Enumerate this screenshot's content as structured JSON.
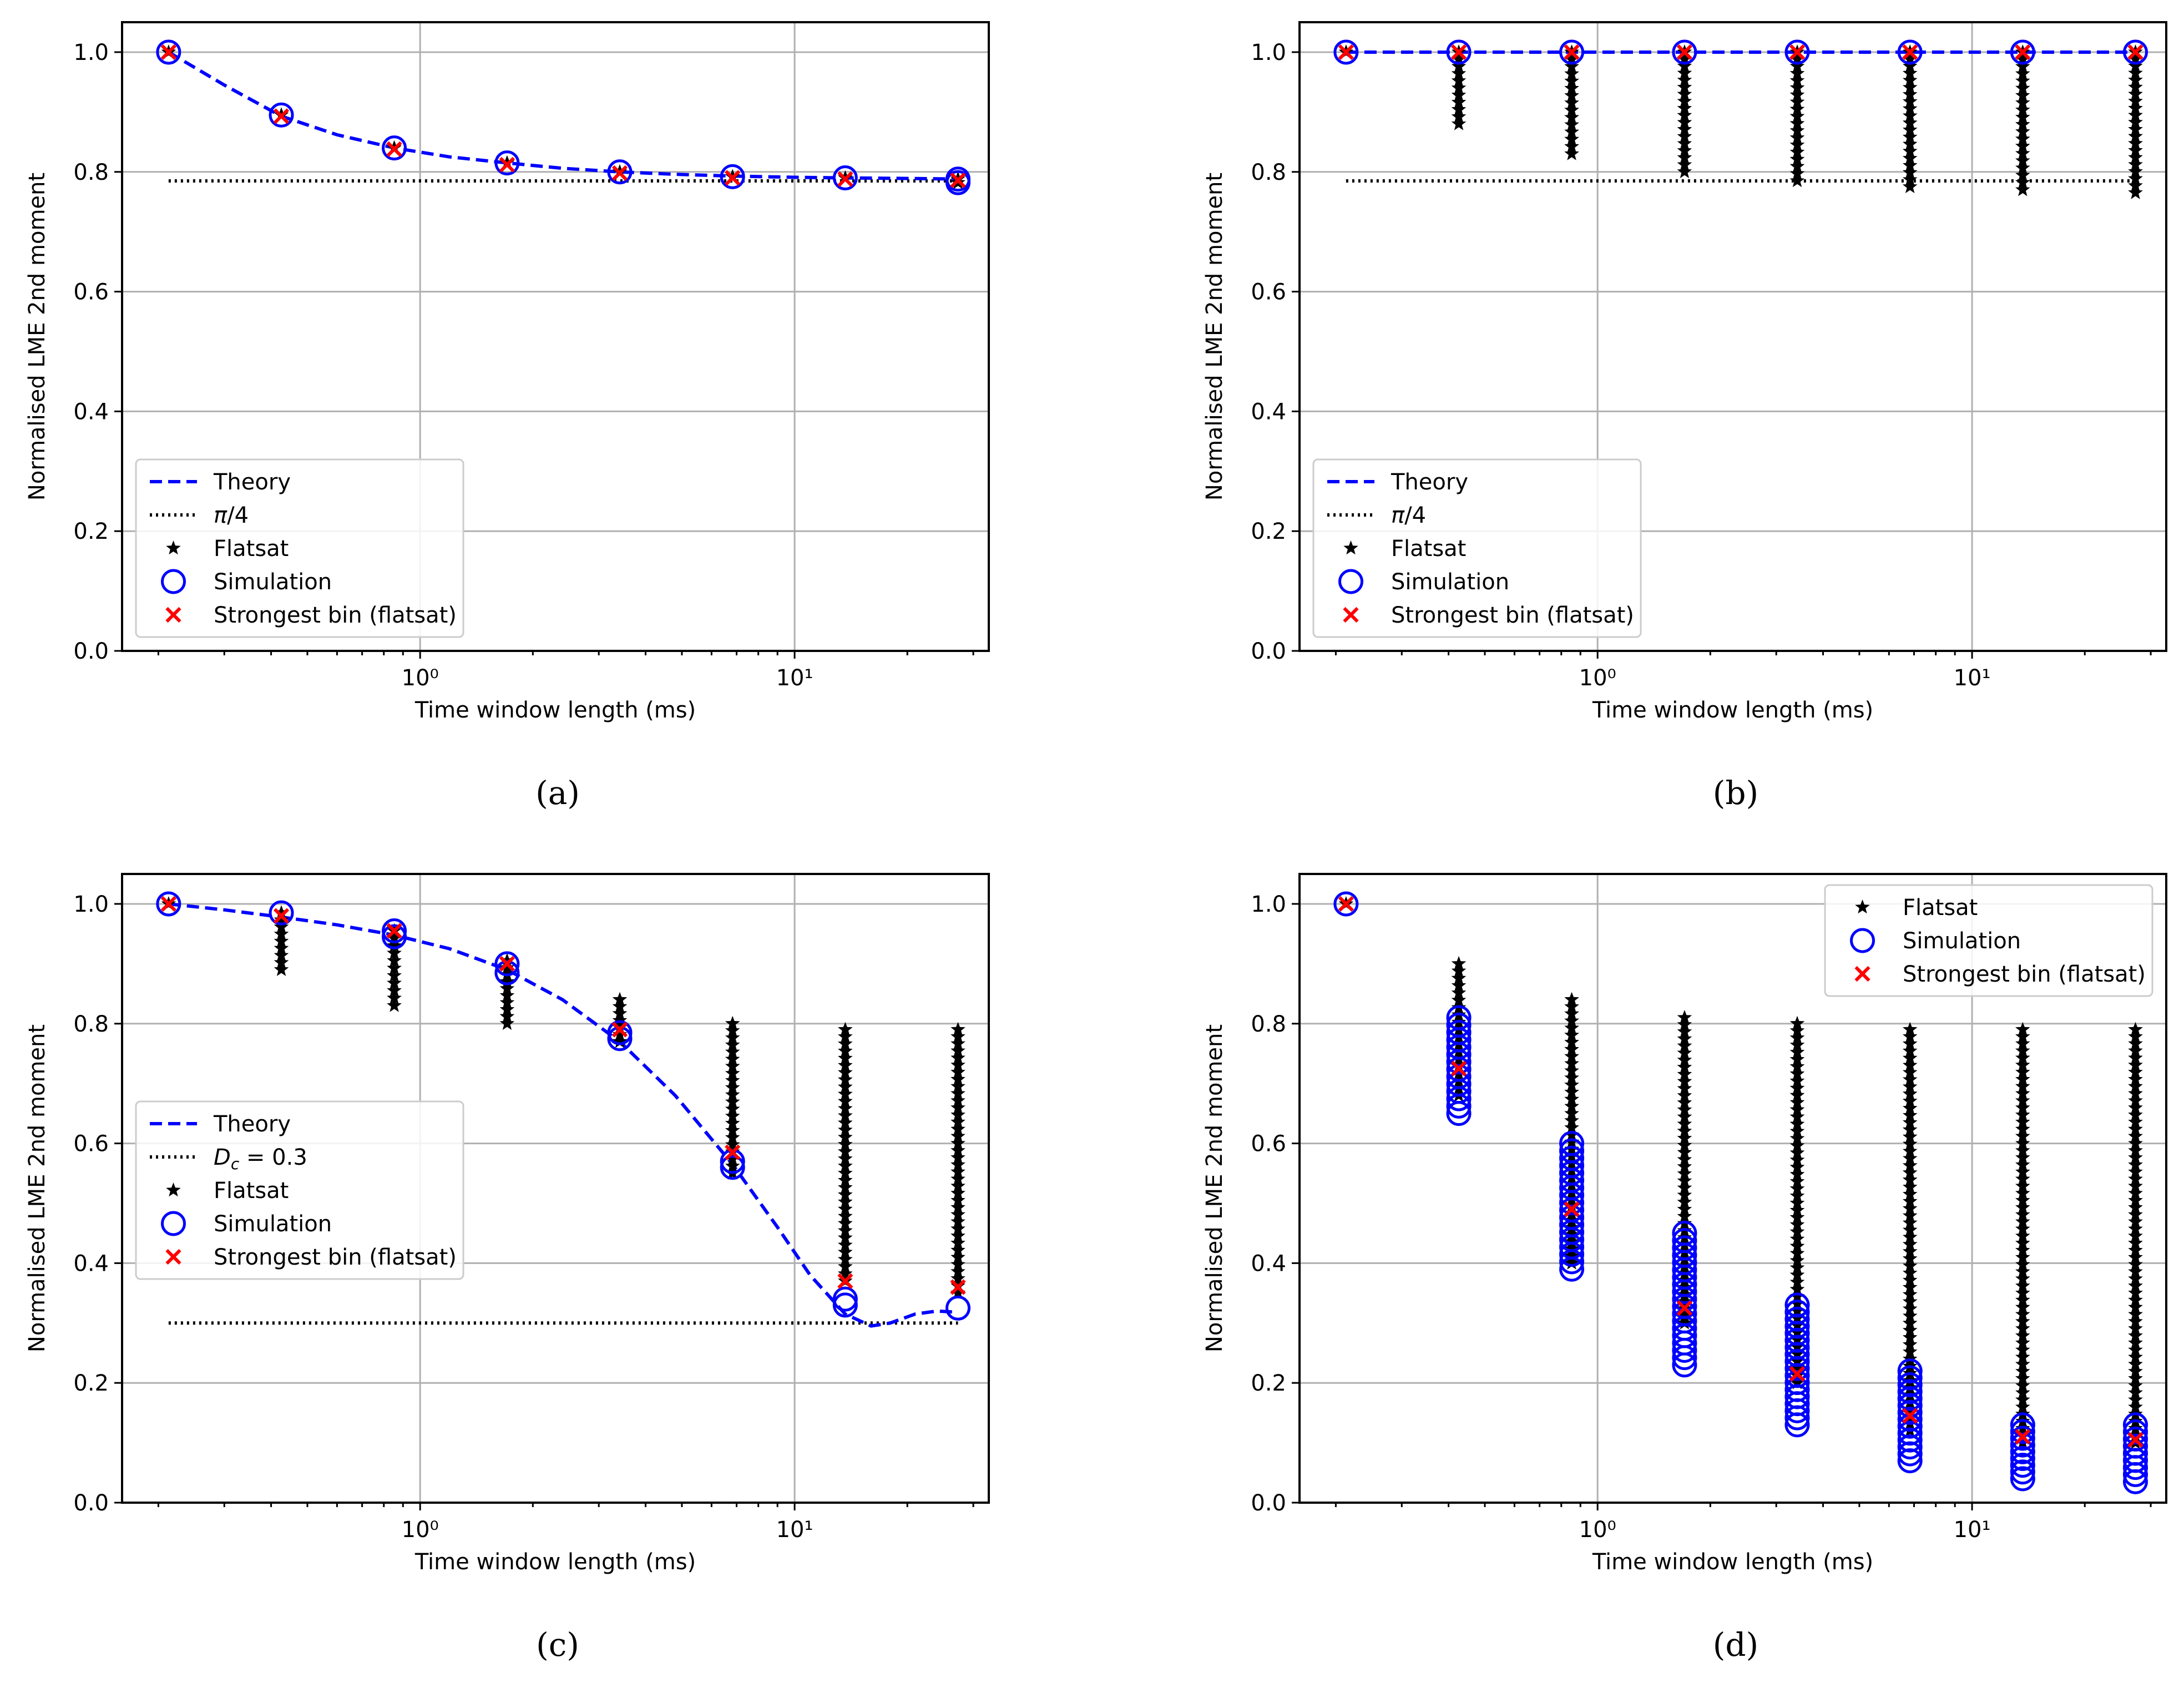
{
  "colors": {
    "theory": "#0000ff",
    "reference": "#000000",
    "flatsat": "#000000",
    "simulation": "#0000ff",
    "strongest": "#ff0000",
    "grid": "#b0b0b0"
  },
  "chart_data": [
    {
      "id": "a",
      "type": "scatter",
      "panel_label": "(a)",
      "xlabel": "Time window length (ms)",
      "ylabel": "Normalised LME 2nd moment",
      "xscale": "log",
      "xlim": [
        0.16,
        33
      ],
      "ylim": [
        0.0,
        1.05
      ],
      "yticks": [
        0.0,
        0.2,
        0.4,
        0.6,
        0.8,
        1.0
      ],
      "yticklabels": [
        "0.0",
        "0.2",
        "0.4",
        "0.6",
        "0.8",
        "1.0"
      ],
      "xticks": [
        1,
        10
      ],
      "xticklabels": [
        "10⁰",
        "10¹"
      ],
      "grid": true,
      "legend_position": "lower-left",
      "x": [
        0.213,
        0.426,
        0.853,
        1.707,
        3.413,
        6.827,
        13.653,
        27.307
      ],
      "theory": {
        "name": "Theory",
        "x": [
          0.213,
          0.3,
          0.426,
          0.6,
          0.853,
          1.2,
          1.707,
          2.4,
          3.413,
          4.8,
          6.827,
          10,
          13.653,
          20,
          27.307
        ],
        "y": [
          1.0,
          0.945,
          0.893,
          0.862,
          0.84,
          0.825,
          0.815,
          0.806,
          0.8,
          0.796,
          0.793,
          0.791,
          0.79,
          0.789,
          0.788
        ]
      },
      "reference": {
        "name": "π/4",
        "y": 0.785
      },
      "flatsat": {
        "name": "Flatsat",
        "min": [
          1.0,
          0.89,
          0.835,
          0.81,
          0.795,
          0.788,
          0.785,
          0.782
        ],
        "max": [
          1.0,
          0.895,
          0.84,
          0.815,
          0.8,
          0.792,
          0.79,
          0.788
        ]
      },
      "simulation": {
        "name": "Simulation",
        "min": [
          1.0,
          0.89,
          0.835,
          0.81,
          0.795,
          0.788,
          0.785,
          0.782
        ],
        "max": [
          1.0,
          0.895,
          0.84,
          0.815,
          0.8,
          0.792,
          0.79,
          0.788
        ]
      },
      "strongest": {
        "name": "Strongest bin (flatsat)",
        "y": [
          1.0,
          0.893,
          0.838,
          0.812,
          0.798,
          0.79,
          0.788,
          0.786
        ]
      },
      "legend_items": [
        "Theory",
        "π/4",
        "Flatsat",
        "Simulation",
        "Strongest bin (flatsat)"
      ]
    },
    {
      "id": "b",
      "type": "scatter",
      "panel_label": "(b)",
      "xlabel": "Time window length (ms)",
      "ylabel": "Normalised LME 2nd moment",
      "xscale": "log",
      "xlim": [
        0.16,
        33
      ],
      "ylim": [
        0.0,
        1.05
      ],
      "yticks": [
        0.0,
        0.2,
        0.4,
        0.6,
        0.8,
        1.0
      ],
      "yticklabels": [
        "0.0",
        "0.2",
        "0.4",
        "0.6",
        "0.8",
        "1.0"
      ],
      "xticks": [
        1,
        10
      ],
      "xticklabels": [
        "10⁰",
        "10¹"
      ],
      "grid": true,
      "legend_position": "lower-left",
      "x": [
        0.213,
        0.426,
        0.853,
        1.707,
        3.413,
        6.827,
        13.653,
        27.307
      ],
      "theory": {
        "name": "Theory",
        "x": [
          0.213,
          27.307
        ],
        "y": [
          1.0,
          1.0
        ]
      },
      "reference": {
        "name": "π/4",
        "y": 0.785
      },
      "flatsat": {
        "name": "Flatsat",
        "min": [
          1.0,
          0.88,
          0.83,
          0.8,
          0.785,
          0.775,
          0.77,
          0.765
        ],
        "max": [
          1.0,
          1.0,
          1.0,
          1.0,
          1.0,
          1.0,
          1.0,
          1.0
        ]
      },
      "simulation": {
        "name": "Simulation",
        "min": [
          1.0,
          1.0,
          1.0,
          1.0,
          1.0,
          1.0,
          1.0,
          1.0
        ],
        "max": [
          1.0,
          1.0,
          1.0,
          1.0,
          1.0,
          1.0,
          1.0,
          1.0
        ]
      },
      "strongest": {
        "name": "Strongest bin (flatsat)",
        "y": [
          1.0,
          1.0,
          1.0,
          1.0,
          1.0,
          1.0,
          1.0,
          1.0
        ]
      },
      "legend_items": [
        "Theory",
        "π/4",
        "Flatsat",
        "Simulation",
        "Strongest bin (flatsat)"
      ]
    },
    {
      "id": "c",
      "type": "scatter",
      "panel_label": "(c)",
      "xlabel": "Time window length (ms)",
      "ylabel": "Normalised LME 2nd moment",
      "xscale": "log",
      "xlim": [
        0.16,
        33
      ],
      "ylim": [
        0.0,
        1.05
      ],
      "yticks": [
        0.0,
        0.2,
        0.4,
        0.6,
        0.8,
        1.0
      ],
      "yticklabels": [
        "0.0",
        "0.2",
        "0.4",
        "0.6",
        "0.8",
        "1.0"
      ],
      "xticks": [
        1,
        10
      ],
      "xticklabels": [
        "10⁰",
        "10¹"
      ],
      "grid": true,
      "legend_position": "center-left",
      "x": [
        0.213,
        0.426,
        0.853,
        1.707,
        3.413,
        6.827,
        13.653,
        27.307
      ],
      "theory": {
        "name": "Theory",
        "x": [
          0.213,
          0.3,
          0.426,
          0.6,
          0.853,
          1.2,
          1.707,
          2.4,
          3.413,
          4.8,
          6.827,
          9.0,
          11.0,
          13.653,
          16.0,
          18.0,
          21.0,
          24.0,
          27.307
        ],
        "y": [
          1.0,
          0.99,
          0.978,
          0.965,
          0.948,
          0.925,
          0.89,
          0.84,
          0.77,
          0.68,
          0.565,
          0.46,
          0.38,
          0.315,
          0.295,
          0.3,
          0.315,
          0.32,
          0.318
        ]
      },
      "reference": {
        "name": "D_c = 0.3",
        "y": 0.3
      },
      "flatsat": {
        "name": "Flatsat",
        "min": [
          1.0,
          0.89,
          0.83,
          0.8,
          0.77,
          0.55,
          0.37,
          0.35
        ],
        "max": [
          1.0,
          0.985,
          0.955,
          0.905,
          0.84,
          0.8,
          0.79,
          0.79
        ]
      },
      "simulation": {
        "name": "Simulation",
        "min": [
          1.0,
          0.98,
          0.945,
          0.885,
          0.775,
          0.56,
          0.33,
          0.32
        ],
        "max": [
          1.0,
          0.985,
          0.955,
          0.9,
          0.785,
          0.57,
          0.34,
          0.325
        ]
      },
      "strongest": {
        "name": "Strongest bin (flatsat)",
        "y": [
          1.0,
          0.98,
          0.955,
          0.9,
          0.79,
          0.585,
          0.37,
          0.36
        ]
      },
      "legend_items": [
        "Theory",
        "D_c = 0.3",
        "Flatsat",
        "Simulation",
        "Strongest bin (flatsat)"
      ]
    },
    {
      "id": "d",
      "type": "scatter",
      "panel_label": "(d)",
      "xlabel": "Time window length (ms)",
      "ylabel": "Normalised LME 2nd moment",
      "xscale": "log",
      "xlim": [
        0.16,
        33
      ],
      "ylim": [
        0.0,
        1.05
      ],
      "yticks": [
        0.0,
        0.2,
        0.4,
        0.6,
        0.8,
        1.0
      ],
      "yticklabels": [
        "0.0",
        "0.2",
        "0.4",
        "0.6",
        "0.8",
        "1.0"
      ],
      "xticks": [
        1,
        10
      ],
      "xticklabels": [
        "10⁰",
        "10¹"
      ],
      "grid": true,
      "legend_position": "upper-right",
      "x": [
        0.213,
        0.426,
        0.853,
        1.707,
        3.413,
        6.827,
        13.653,
        27.307
      ],
      "flatsat": {
        "name": "Flatsat",
        "min": [
          1.0,
          0.68,
          0.4,
          0.3,
          0.2,
          0.12,
          0.1,
          0.1
        ],
        "max": [
          1.0,
          0.9,
          0.84,
          0.81,
          0.8,
          0.79,
          0.79,
          0.79
        ]
      },
      "simulation": {
        "name": "Simulation",
        "min": [
          1.0,
          0.65,
          0.39,
          0.23,
          0.13,
          0.07,
          0.04,
          0.035
        ],
        "max": [
          1.0,
          0.81,
          0.6,
          0.45,
          0.33,
          0.22,
          0.13,
          0.13
        ]
      },
      "strongest": {
        "name": "Strongest bin (flatsat)",
        "y": [
          1.0,
          0.725,
          0.49,
          0.325,
          0.215,
          0.145,
          0.11,
          0.105
        ]
      },
      "legend_items": [
        "Flatsat",
        "Simulation",
        "Strongest bin (flatsat)"
      ]
    }
  ]
}
